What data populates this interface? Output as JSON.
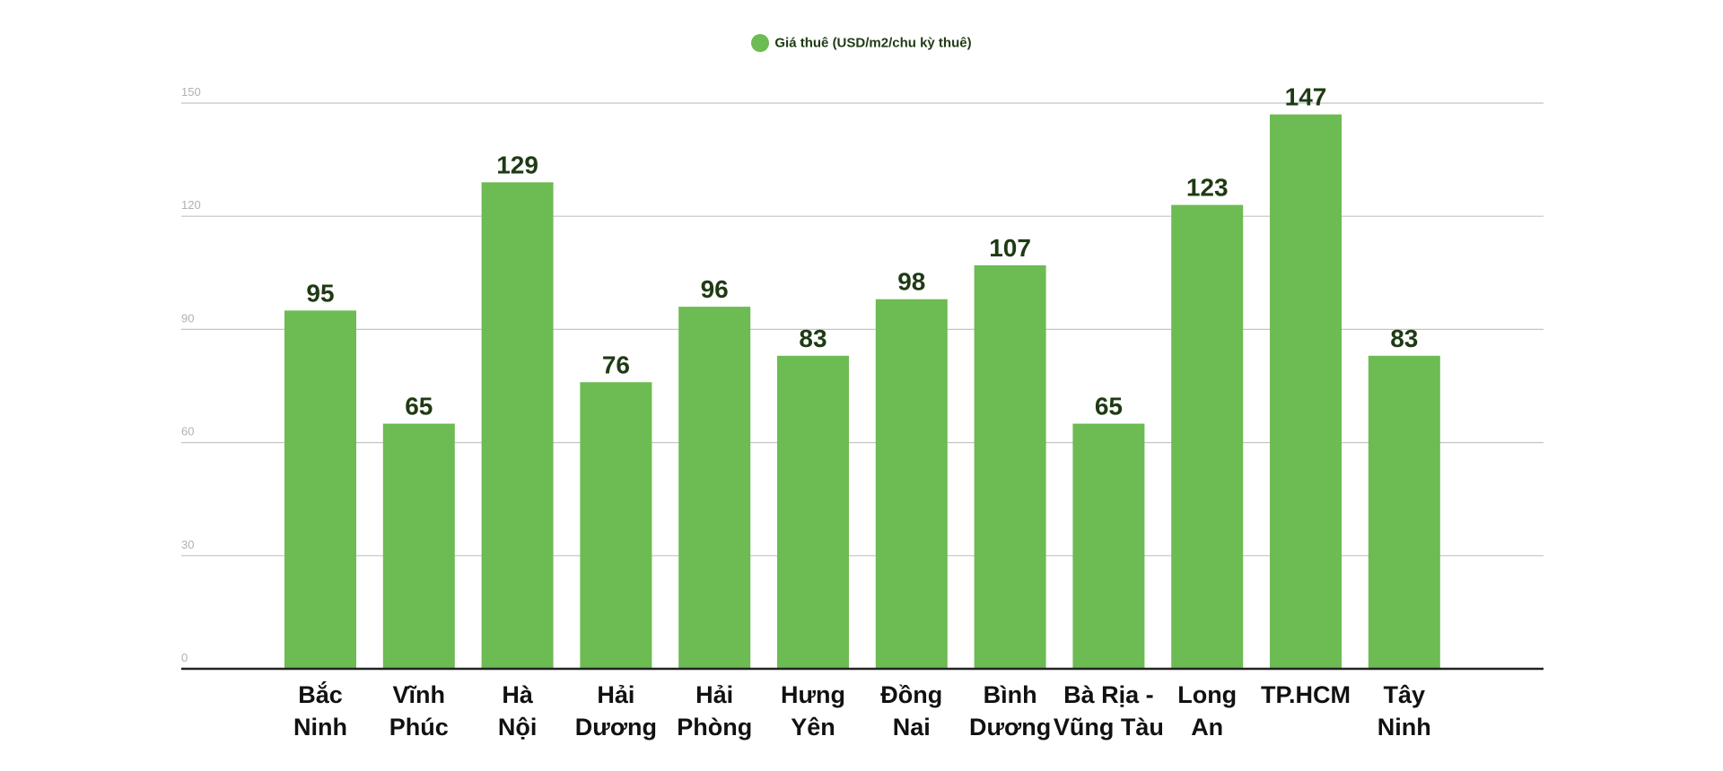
{
  "chart_data": {
    "type": "bar",
    "title": "",
    "xlabel": "",
    "ylabel": "",
    "categories": [
      [
        "Bắc",
        "Ninh"
      ],
      [
        "Vĩnh",
        "Phúc"
      ],
      [
        "Hà",
        "Nội"
      ],
      [
        "Hải",
        "Dương"
      ],
      [
        "Hải",
        "Phòng"
      ],
      [
        "Hưng",
        "Yên"
      ],
      [
        "Đồng",
        "Nai"
      ],
      [
        "Bình",
        "Dương"
      ],
      [
        "Bà Rịa -",
        "Vũng Tàu"
      ],
      [
        "Long",
        "An"
      ],
      [
        "TP.HCM",
        ""
      ],
      [
        "Tây",
        "Ninh"
      ]
    ],
    "series": [
      {
        "name": "Giá thuê (USD/m2/chu kỳ thuê)",
        "values": [
          95,
          65,
          129,
          76,
          96,
          83,
          98,
          107,
          65,
          123,
          147,
          83
        ],
        "color": "#6dbb53"
      }
    ],
    "ylim": [
      0,
      150
    ],
    "yticks": [
      0,
      30,
      60,
      90,
      120,
      150
    ],
    "grid": true,
    "legend": "top-center",
    "data_labels": true,
    "label_color": "#1f3a14"
  }
}
